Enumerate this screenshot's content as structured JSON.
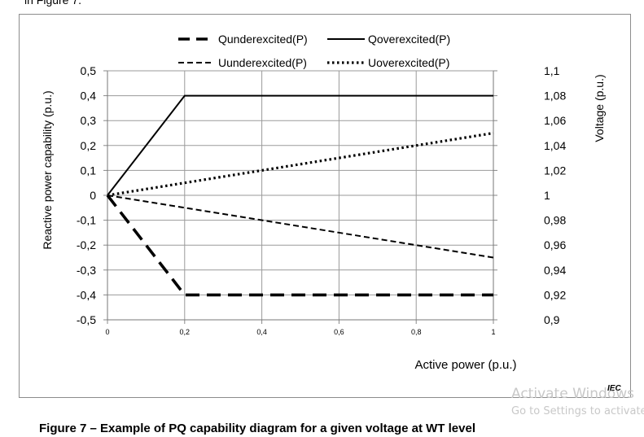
{
  "page": {
    "top_text": "in Figure 7.",
    "caption": "Figure 7 – Example of PQ capability diagram for a given voltage at WT level",
    "iec_mark": "IEC",
    "watermark_line1": "Activate Windows",
    "watermark_line2": "Go to Settings to activate"
  },
  "chart_data": {
    "type": "line",
    "title": "",
    "xlabel": "Active power (p.u.)",
    "ylabel": "Reactive power capability (p.u.)",
    "y2label": "Voltage (p.u.)",
    "xlim": [
      0,
      1
    ],
    "ylim": [
      -0.5,
      0.5
    ],
    "y2lim": [
      0.9,
      1.1
    ],
    "x_ticks": [
      "0",
      "0,2",
      "0,4",
      "0,6",
      "0,8",
      "1"
    ],
    "y_ticks": [
      "0,5",
      "0,4",
      "0,3",
      "0,2",
      "0,1",
      "0",
      "-0,1",
      "-0,2",
      "-0,3",
      "-0,4",
      "-0,5"
    ],
    "y2_ticks": [
      "1,1",
      "1,08",
      "1,06",
      "1,04",
      "1,02",
      "1",
      "0,98",
      "0,96",
      "0,94",
      "0,92",
      "0,9"
    ],
    "grid": true,
    "legend_position": "top",
    "series": [
      {
        "name": "Qunderexcited(P)",
        "axis": "left",
        "style": "long-dash",
        "x": [
          0,
          0.2,
          1
        ],
        "y": [
          0,
          -0.4,
          -0.4
        ]
      },
      {
        "name": "Qoverexcited(P)",
        "axis": "left",
        "style": "solid",
        "x": [
          0,
          0.2,
          1
        ],
        "y": [
          0,
          0.4,
          0.4
        ]
      },
      {
        "name": "Uunderexcited(P)",
        "axis": "right",
        "style": "dash",
        "x": [
          0,
          1
        ],
        "y": [
          1.0,
          0.95
        ]
      },
      {
        "name": "Uoverexcited(P)",
        "axis": "right",
        "style": "dot",
        "x": [
          0,
          1
        ],
        "y": [
          1.0,
          1.05
        ]
      }
    ]
  }
}
